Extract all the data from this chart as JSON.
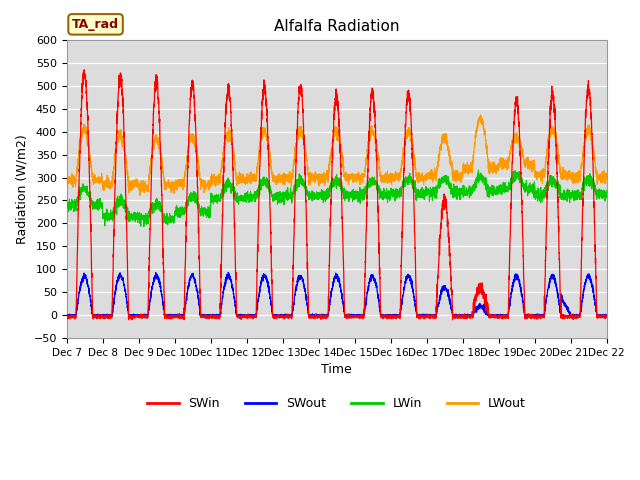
{
  "title": "Alfalfa Radiation",
  "ylabel": "Radiation (W/m2)",
  "xlabel": "Time",
  "ylim": [
    -50,
    550
  ],
  "bg_color": "#dcdcdc",
  "annotation_text": "TA_rad",
  "annotation_bg": "#ffffcc",
  "annotation_border": "#996600",
  "colors": {
    "SWin": "#ff0000",
    "SWout": "#0000ff",
    "LWin": "#00cc00",
    "LWout": "#ff9900"
  },
  "num_days": 15,
  "start_day": 7,
  "SWin_peaks": [
    530,
    520,
    507,
    502,
    492,
    496,
    498,
    480,
    485,
    484,
    250,
    60,
    468,
    480,
    500
  ],
  "SWout_peaks": [
    85,
    87,
    86,
    86,
    85,
    86,
    85,
    85,
    85,
    85,
    60,
    20,
    85,
    85,
    86
  ],
  "LWin_base": [
    240,
    215,
    210,
    225,
    255,
    258,
    260,
    262,
    262,
    265,
    268,
    270,
    275,
    262,
    262
  ],
  "LWout_base": [
    295,
    285,
    280,
    285,
    295,
    298,
    300,
    300,
    300,
    300,
    305,
    320,
    330,
    305,
    300
  ],
  "LWin_noise": 6,
  "LWout_noise": 6,
  "SW_noise": 8
}
